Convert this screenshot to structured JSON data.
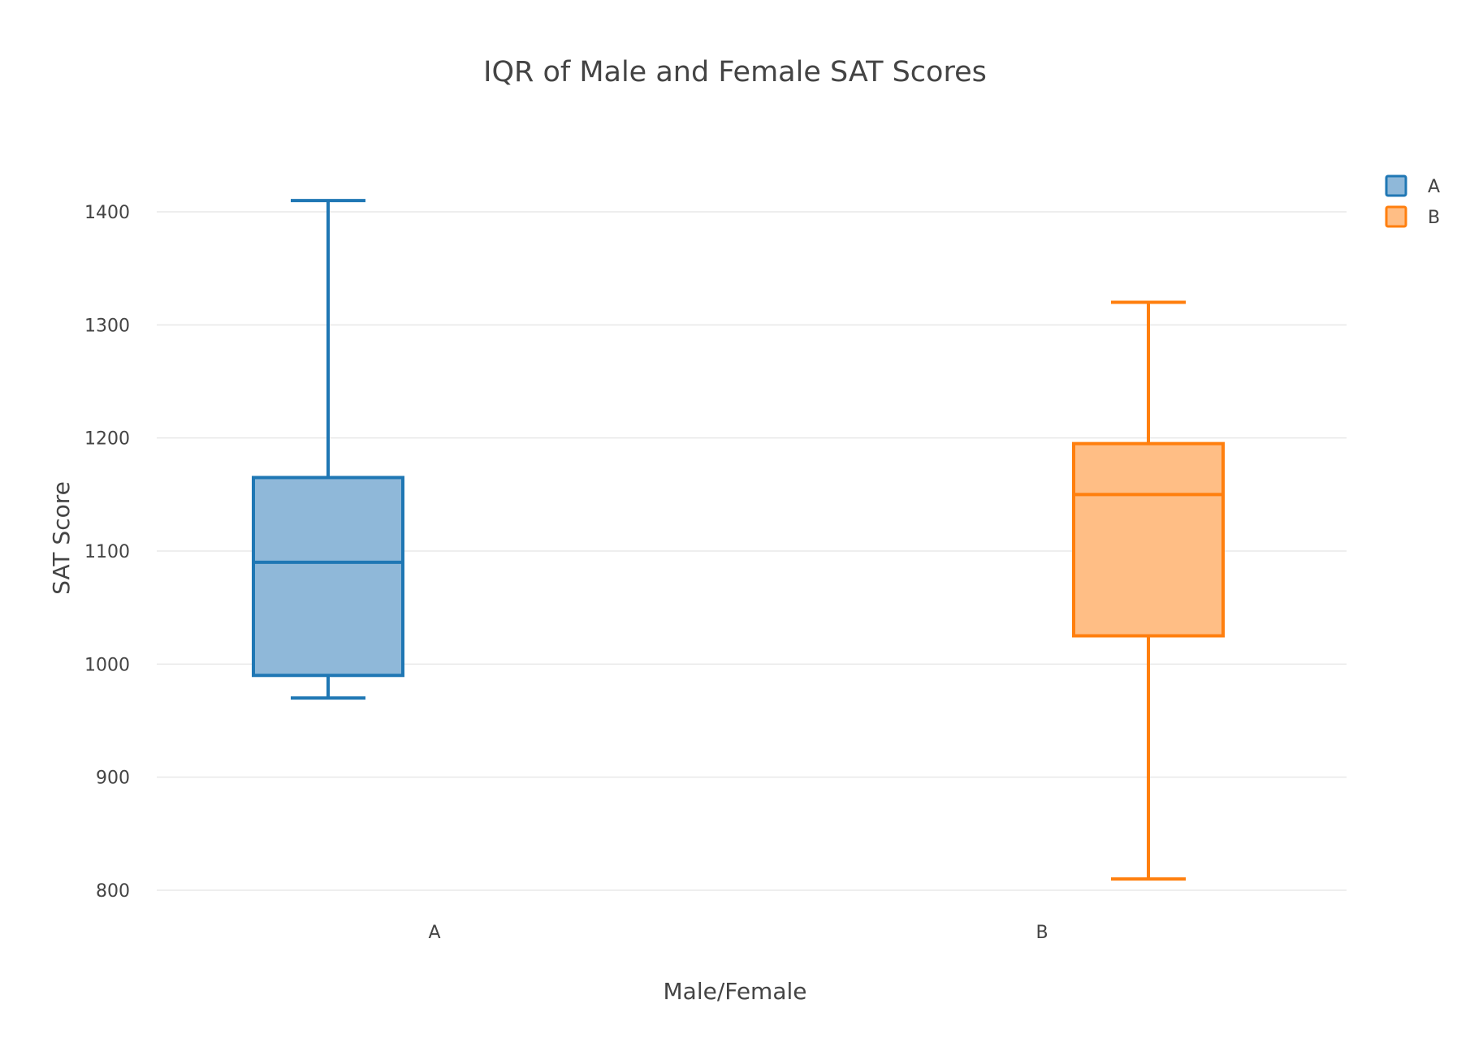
{
  "chart_data": {
    "type": "box",
    "title": "IQR of Male and Female SAT Scores",
    "xlabel": "Male/Female",
    "ylabel": "SAT Score",
    "ylim": [
      785,
      1435
    ],
    "yticks": [
      800,
      900,
      1000,
      1100,
      1200,
      1300,
      1400
    ],
    "categories": [
      "A",
      "B"
    ],
    "grid": true,
    "legend_position": "top-right",
    "series": [
      {
        "name": "A",
        "category": "A",
        "min": 970,
        "q1": 990,
        "median": 1090,
        "q3": 1165,
        "max": 1410,
        "color": "#1f77b4",
        "fill": "#8fb8d9"
      },
      {
        "name": "B",
        "category": "B",
        "min": 810,
        "q1": 1025,
        "median": 1150,
        "q3": 1195,
        "max": 1320,
        "color": "#ff7f0e",
        "fill": "#ffbe85"
      }
    ]
  }
}
